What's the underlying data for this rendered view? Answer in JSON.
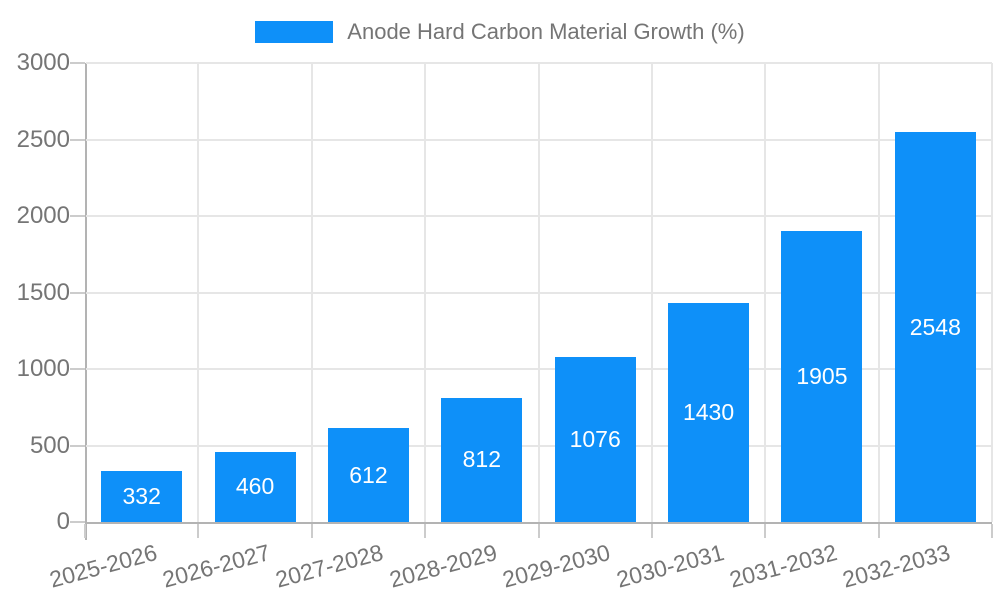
{
  "legend": {
    "label": "Anode Hard Carbon Material Growth (%)"
  },
  "chart_data": {
    "type": "bar",
    "title": "Anode Hard Carbon Material Growth (%)",
    "categories": [
      "2025-2026",
      "2026-2027",
      "2027-2028",
      "2028-2029",
      "2029-2030",
      "2030-2031",
      "2031-2032",
      "2032-2033"
    ],
    "values": [
      332,
      460,
      612,
      812,
      1076,
      1430,
      1905,
      2548
    ],
    "xlabel": "",
    "ylabel": "",
    "ylim": [
      0,
      3000
    ],
    "yticks": [
      0,
      500,
      1000,
      1500,
      2000,
      2500,
      3000
    ],
    "grid": true,
    "legend_position": "top-center",
    "bar_color": "#0e90f9",
    "bar_value_label_color": "#ffffff",
    "axis_text_color": "#757575",
    "gridline_color": "#e6e6e6",
    "axis_line_color": "#b3b3b3",
    "value_labels_inside_bars": true,
    "x_label_rotation_deg": -15
  }
}
